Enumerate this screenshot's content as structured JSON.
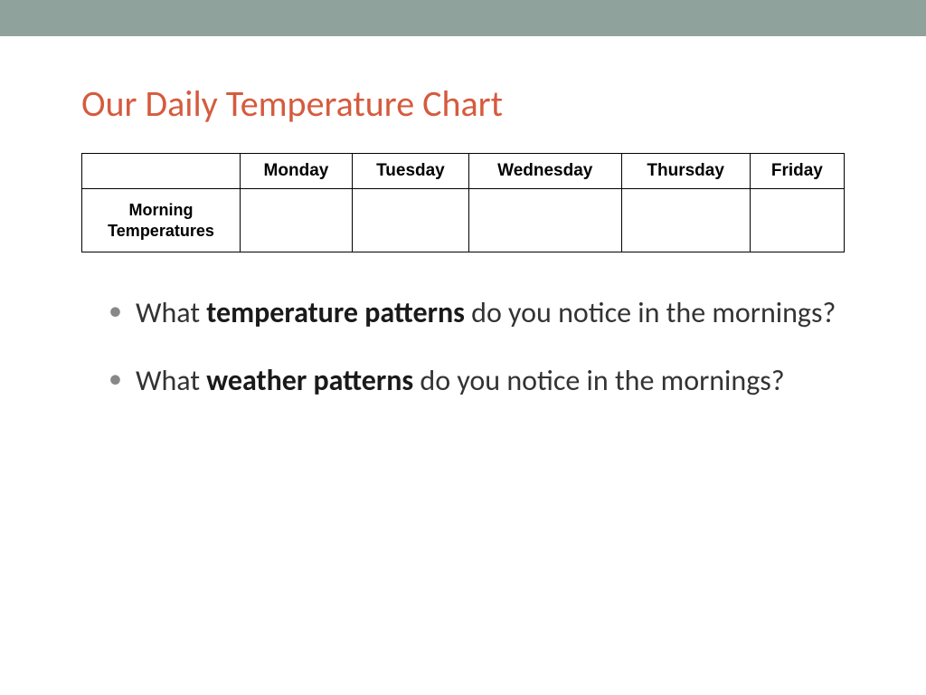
{
  "colors": {
    "top_bar": "#8fa29b",
    "title": "#d55b3e",
    "background": "#ffffff",
    "border": "#000000",
    "body_text": "#333333",
    "bullet": "#888888"
  },
  "title": "Our Daily Temperature Chart",
  "table": {
    "type": "table",
    "columns": [
      "",
      "Monday",
      "Tuesday",
      "Wednesday",
      "Thursday",
      "Friday"
    ],
    "rows": [
      {
        "label": "Morning Temperatures",
        "cells": [
          "",
          "",
          "",
          "",
          ""
        ]
      }
    ],
    "header_fontsize": 19,
    "row_label_fontsize": 18,
    "border_color": "#000000"
  },
  "bullets": [
    {
      "prefix": "What ",
      "bold": "temperature patterns",
      "suffix": " do you notice in the mornings?"
    },
    {
      "prefix": "What ",
      "bold": "weather patterns",
      "suffix": " do you notice in the mornings?"
    }
  ],
  "typography": {
    "title_fontsize": 40,
    "body_fontsize": 32,
    "font_family": "Calibri"
  }
}
